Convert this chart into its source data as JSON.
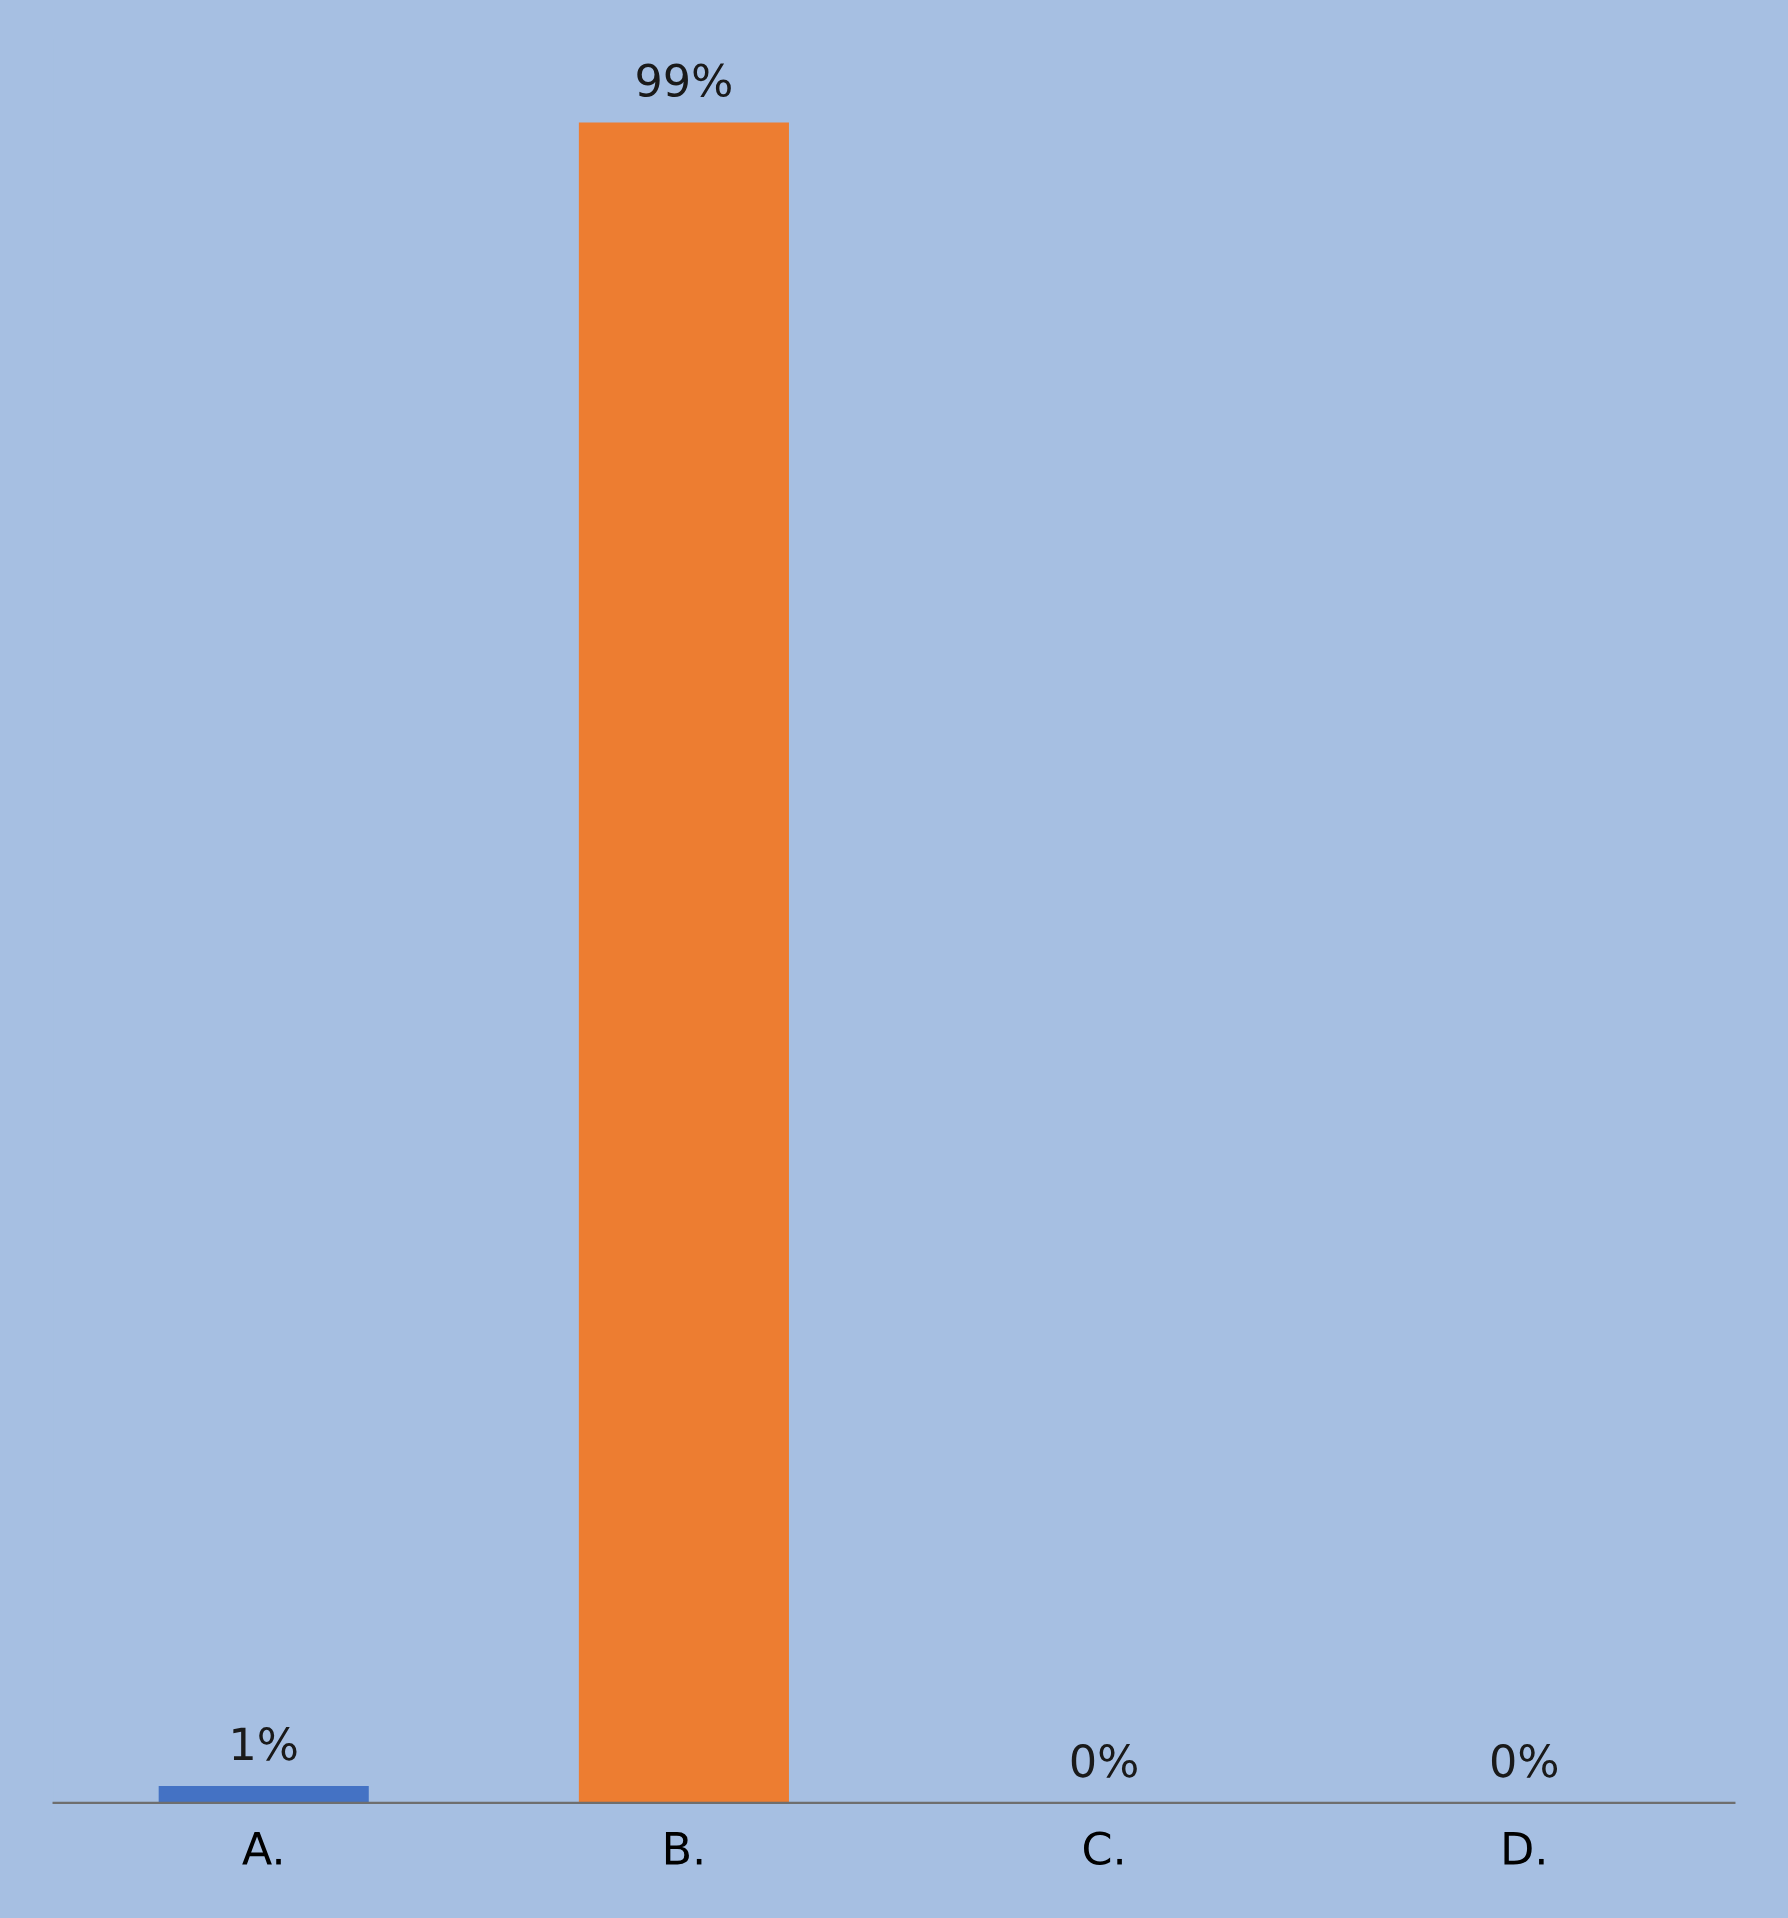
{
  "chart_data": {
    "type": "bar",
    "categories": [
      "A.",
      "B.",
      "C.",
      "D."
    ],
    "values": [
      1,
      99,
      0,
      0
    ],
    "colors": [
      "#4472c4",
      "#ed7d31",
      "#a5a5a5",
      "#ffc000"
    ],
    "value_labels": [
      "1%",
      "99%",
      "0%",
      "0%"
    ],
    "grid": false,
    "legend": false
  }
}
